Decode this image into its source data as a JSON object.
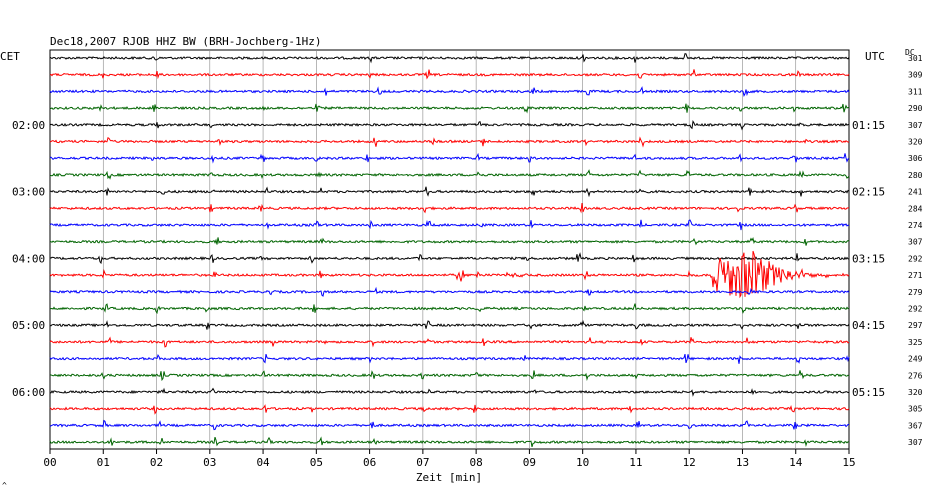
{
  "chart_data": {
    "type": "line",
    "title": "Dec18,2007   RJOB HHZ BW (BRH-Jochberg-1Hz)",
    "left_zone_label": "CET",
    "right_zone_label": "UTC",
    "dc_header": "DC",
    "xlabel": "Zeit [min]",
    "xlim": [
      0,
      15
    ],
    "x_ticks": [
      "00",
      "01",
      "02",
      "03",
      "04",
      "05",
      "06",
      "07",
      "08",
      "09",
      "10",
      "11",
      "12",
      "13",
      "14",
      "15"
    ],
    "left_hour_labels": [
      "02:00",
      "03:00",
      "04:00",
      "05:00",
      "06:00"
    ],
    "right_hour_labels": [
      "01:15",
      "02:15",
      "03:15",
      "04:15",
      "05:15"
    ],
    "hour_label_trace_index": [
      4,
      8,
      12,
      16,
      20
    ],
    "trace_colors": [
      "#000000",
      "#ff0000",
      "#0000ff",
      "#006400"
    ],
    "dc_offsets": [
      "301",
      "309",
      "311",
      "290",
      "307",
      "320",
      "306",
      "280",
      "241",
      "284",
      "274",
      "307",
      "292",
      "271",
      "279",
      "292",
      "297",
      "325",
      "249",
      "276",
      "320",
      "305",
      "367",
      "307"
    ],
    "event": {
      "trace_index": 13,
      "start_min": 12.4,
      "end_min": 14.9,
      "peak_min": 13.2
    },
    "corner_mark": "^"
  }
}
